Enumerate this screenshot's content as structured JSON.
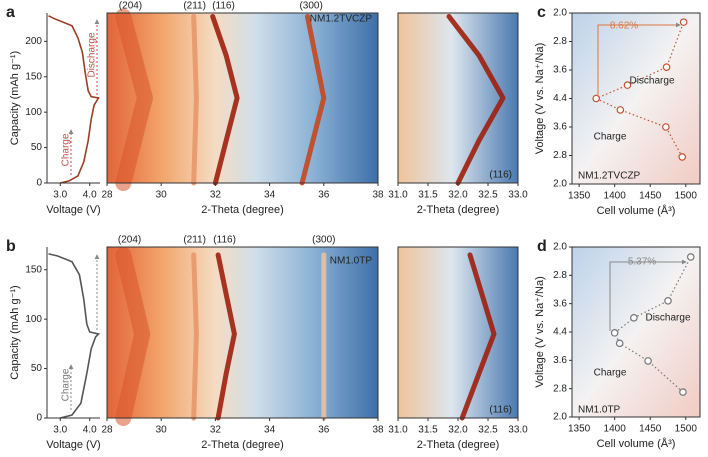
{
  "chart_data": [
    {
      "type": "line",
      "panel": "a",
      "xlabel": "Voltage (V)",
      "ylabel": "Capacity (mAh g⁻¹)",
      "xlim": [
        2.55,
        4.35
      ],
      "xticks": [
        {
          "value": 3,
          "label": "3.0"
        },
        {
          "value": 4,
          "label": "4.0"
        }
      ],
      "ylim": [
        0,
        240
      ],
      "yticks": [
        0,
        50,
        100,
        150,
        200
      ],
      "series": [
        {
          "color": "#9c3d23",
          "x": [
            3.0,
            3.3,
            3.6,
            3.8,
            3.95,
            4.05,
            4.15,
            4.3,
            4.05,
            3.95,
            3.85,
            3.75,
            3.6,
            3.4,
            2.8,
            2.6
          ],
          "values": [
            0,
            3,
            10,
            30,
            60,
            90,
            110,
            120,
            122,
            130,
            155,
            185,
            205,
            222,
            232,
            236
          ]
        }
      ],
      "annotations": [
        "Charge",
        "Discharge"
      ]
    },
    {
      "type": "heatmap",
      "xlabel": "2-Theta (degree)",
      "xlim": [
        28,
        38
      ],
      "xticks": [
        28,
        30,
        32,
        34,
        36,
        38
      ],
      "ylim": [
        0,
        240
      ],
      "series": [
        {
          "name": "(204)",
          "color": "#d9562b",
          "x": [
            28.6,
            29.4,
            28.6
          ],
          "values": [
            0,
            120,
            235
          ]
        },
        {
          "name": "(211)",
          "color": "#e8976a",
          "x": [
            31.2,
            31.3,
            31.2
          ],
          "values": [
            0,
            120,
            235
          ]
        },
        {
          "name": "(116)",
          "color": "#9e1f0c",
          "x": [
            32.0,
            32.4,
            32.8,
            32.4,
            31.9
          ],
          "values": [
            0,
            60,
            120,
            180,
            235
          ]
        },
        {
          "name": "(300)",
          "color": "#c4481f",
          "x": [
            35.2,
            36.0,
            35.4
          ],
          "values": [
            0,
            120,
            235
          ]
        }
      ],
      "annotations": [
        "NM1.2TVCZP"
      ]
    },
    {
      "type": "heatmap",
      "xlabel": "2-Theta (degree)",
      "xlim": [
        31,
        33
      ],
      "xticks": [
        {
          "value": 31,
          "label": "31.0"
        },
        {
          "value": 31.5,
          "label": "31.5"
        },
        {
          "value": 32,
          "label": "32.0"
        },
        {
          "value": 32.5,
          "label": "32.5"
        },
        {
          "value": 33,
          "label": "33.0"
        }
      ],
      "ylim": [
        0,
        240
      ],
      "series": [
        {
          "color": "#9e1f0c",
          "x": [
            32.0,
            32.35,
            32.75,
            32.35,
            31.85
          ],
          "values": [
            0,
            60,
            120,
            180,
            235
          ]
        }
      ],
      "annotations": [
        "(116)"
      ]
    },
    {
      "type": "scatter",
      "panel": "c",
      "xlabel": "Cell volume (Å³)",
      "ylabel": "Voltage (V vs. Na⁺/Na)",
      "xlim": [
        1340,
        1520
      ],
      "xticks": [
        1350,
        1400,
        1450,
        1500
      ],
      "ylim": [
        0,
        6
      ],
      "yticks": [
        {
          "value": 0,
          "label": "2.0"
        },
        {
          "value": 1,
          "label": "2.8"
        },
        {
          "value": 2,
          "label": "3.6"
        },
        {
          "value": 3,
          "label": "4.4"
        },
        {
          "value": 4,
          "label": "3.6"
        },
        {
          "value": 5,
          "label": "2.8"
        },
        {
          "value": 6,
          "label": "2.0"
        }
      ],
      "series": [
        {
          "color": "#c0502e",
          "x": [
            1495,
            1472,
            1408,
            1374,
            1418,
            1473,
            1497
          ],
          "values": [
            0.95,
            2.0,
            2.6,
            3.0,
            3.47,
            4.1,
            5.68
          ]
        }
      ],
      "annotations": [
        "8.62%",
        "Discharge",
        "Charge",
        "NM1.2TVCZP"
      ]
    },
    {
      "type": "line",
      "panel": "b",
      "xlabel": "Voltage (V)",
      "ylabel": "Capacity (mAh g⁻¹)",
      "xlim": [
        2.55,
        4.35
      ],
      "xticks": [
        {
          "value": 3,
          "label": "3.0"
        },
        {
          "value": 4,
          "label": "4.0"
        }
      ],
      "ylim": [
        0,
        173
      ],
      "yticks": [
        0,
        50,
        100,
        150
      ],
      "series": [
        {
          "color": "#555555",
          "x": [
            3.0,
            3.4,
            3.7,
            3.9,
            4.05,
            4.2,
            4.3,
            4.0,
            3.9,
            3.8,
            3.65,
            3.4,
            2.9,
            2.6
          ],
          "values": [
            0,
            3,
            15,
            45,
            70,
            82,
            85,
            87,
            95,
            120,
            145,
            158,
            164,
            166
          ]
        }
      ],
      "annotations": [
        "Charge"
      ]
    },
    {
      "type": "heatmap",
      "xlabel": "2-Theta (degree)",
      "xlim": [
        28,
        38
      ],
      "xticks": [
        28,
        30,
        32,
        34,
        36,
        38
      ],
      "ylim": [
        0,
        173
      ],
      "series": [
        {
          "name": "(204)",
          "color": "#d9562b",
          "x": [
            28.6,
            29.3,
            28.6
          ],
          "values": [
            0,
            85,
            165
          ]
        },
        {
          "name": "(211)",
          "color": "#e8976a",
          "x": [
            31.2,
            31.3,
            31.2
          ],
          "values": [
            0,
            85,
            165
          ]
        },
        {
          "name": "(116)",
          "color": "#9e1f0c",
          "x": [
            32.1,
            32.4,
            32.7,
            32.4,
            32.1
          ],
          "values": [
            0,
            45,
            85,
            125,
            165
          ]
        },
        {
          "name": "(300)",
          "color": "#e8c0a0",
          "x": [
            36.0,
            36.0,
            36.0
          ],
          "values": [
            0,
            85,
            165
          ]
        }
      ],
      "annotations": [
        "NM1.0TP"
      ]
    },
    {
      "type": "heatmap",
      "xlabel": "2-Theta (degree)",
      "xlim": [
        31,
        33
      ],
      "xticks": [
        {
          "value": 31,
          "label": "31.0"
        },
        {
          "value": 31.5,
          "label": "31.5"
        },
        {
          "value": 32,
          "label": "32.0"
        },
        {
          "value": 32.5,
          "label": "32.5"
        },
        {
          "value": 33,
          "label": "33.0"
        }
      ],
      "ylim": [
        0,
        173
      ],
      "series": [
        {
          "color": "#9e1f0c",
          "x": [
            32.07,
            32.35,
            32.6,
            32.4,
            32.2
          ],
          "values": [
            0,
            45,
            85,
            125,
            165
          ]
        }
      ],
      "annotations": [
        "(116)"
      ]
    },
    {
      "type": "scatter",
      "panel": "d",
      "xlabel": "Cell volume (Å³)",
      "ylabel": "Voltage (V vs. Na⁺/Na)",
      "xlim": [
        1340,
        1520
      ],
      "xticks": [
        1350,
        1400,
        1450,
        1500
      ],
      "ylim": [
        0,
        6
      ],
      "yticks": [
        {
          "value": 0,
          "label": "2.0"
        },
        {
          "value": 1,
          "label": "2.8"
        },
        {
          "value": 2,
          "label": "3.6"
        },
        {
          "value": 3,
          "label": "4.4"
        },
        {
          "value": 4,
          "label": "3.6"
        },
        {
          "value": 5,
          "label": "2.8"
        },
        {
          "value": 6,
          "label": "2.0"
        }
      ],
      "series": [
        {
          "color": "#777777",
          "x": [
            1496,
            1447,
            1407,
            1400,
            1427,
            1475,
            1507
          ],
          "values": [
            0.88,
            1.98,
            2.6,
            2.97,
            3.5,
            4.1,
            5.65
          ]
        }
      ],
      "annotations": [
        "5.37%",
        "Discharge",
        "Charge",
        "NM1.0TP"
      ]
    }
  ]
}
